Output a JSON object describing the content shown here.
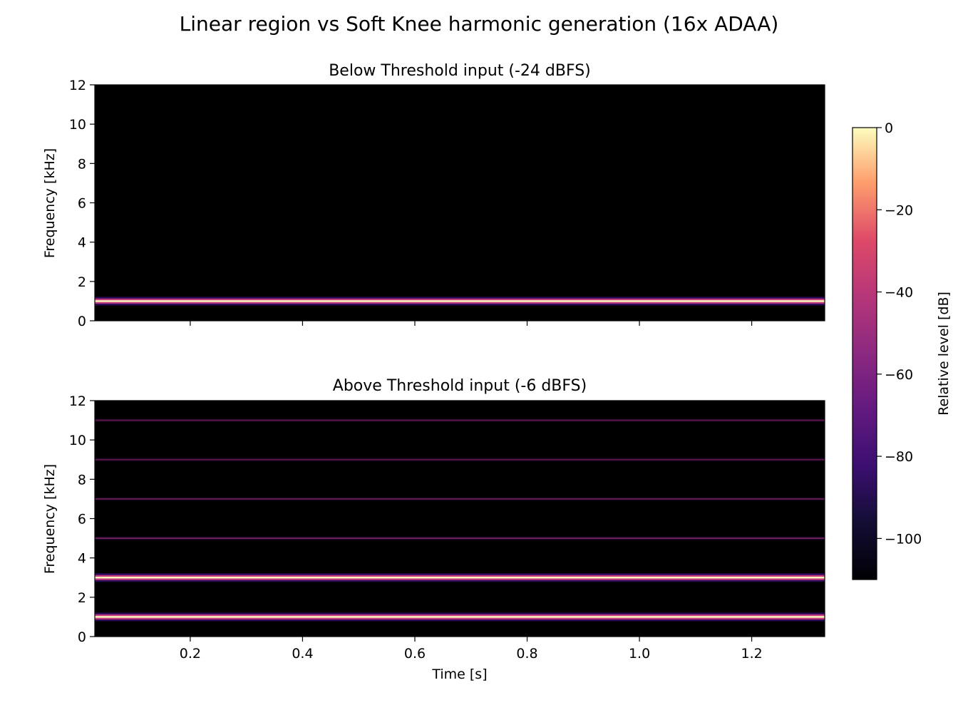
{
  "suptitle": "Linear region vs Soft Knee harmonic generation (16x ADAA)",
  "colors": {
    "background": "#000000",
    "harmonic_core": "#fcfdbf",
    "harmonic_glow": "#c33d80",
    "harmonic_faint": "#b5367a"
  },
  "chart_data": [
    {
      "type": "heatmap",
      "title": "Below Threshold input (-24 dBFS)",
      "xlabel": "",
      "ylabel": "Frequency [kHz]",
      "xlim": [
        0.03,
        1.33
      ],
      "ylim": [
        0,
        12
      ],
      "xticks": [
        0.2,
        0.4,
        0.6,
        0.8,
        1.0,
        1.2
      ],
      "xtick_labels_visible": false,
      "yticks": [
        0,
        2,
        4,
        6,
        8,
        10,
        12
      ],
      "ytick_labels": [
        "0",
        "2",
        "4",
        "6",
        "8",
        "10",
        "12"
      ],
      "harmonics": [
        {
          "freq_khz": 1.0,
          "level_db": 0
        }
      ]
    },
    {
      "type": "heatmap",
      "title": "Above Threshold input (-6 dBFS)",
      "xlabel": "Time [s]",
      "ylabel": "Frequency [kHz]",
      "xlim": [
        0.03,
        1.33
      ],
      "ylim": [
        0,
        12
      ],
      "xticks": [
        0.2,
        0.4,
        0.6,
        0.8,
        1.0,
        1.2
      ],
      "xtick_labels": [
        "0.2",
        "0.4",
        "0.6",
        "0.8",
        "1.0",
        "1.2"
      ],
      "xtick_labels_visible": true,
      "yticks": [
        0,
        2,
        4,
        6,
        8,
        10,
        12
      ],
      "ytick_labels": [
        "0",
        "2",
        "4",
        "6",
        "8",
        "10",
        "12"
      ],
      "harmonics": [
        {
          "freq_khz": 1.0,
          "level_db": 0
        },
        {
          "freq_khz": 3.0,
          "level_db": -15
        },
        {
          "freq_khz": 5.0,
          "level_db": -38
        },
        {
          "freq_khz": 7.0,
          "level_db": -45
        },
        {
          "freq_khz": 9.0,
          "level_db": -50
        },
        {
          "freq_khz": 11.0,
          "level_db": -54
        }
      ]
    }
  ],
  "colorbar": {
    "label": "Relative level [dB]",
    "range": [
      -110,
      0
    ],
    "ticks": [
      0,
      -20,
      -40,
      -60,
      -80,
      -100
    ],
    "tick_labels": [
      "0",
      "−20",
      "−40",
      "−60",
      "−80",
      "−100"
    ],
    "colormap": "magma"
  }
}
